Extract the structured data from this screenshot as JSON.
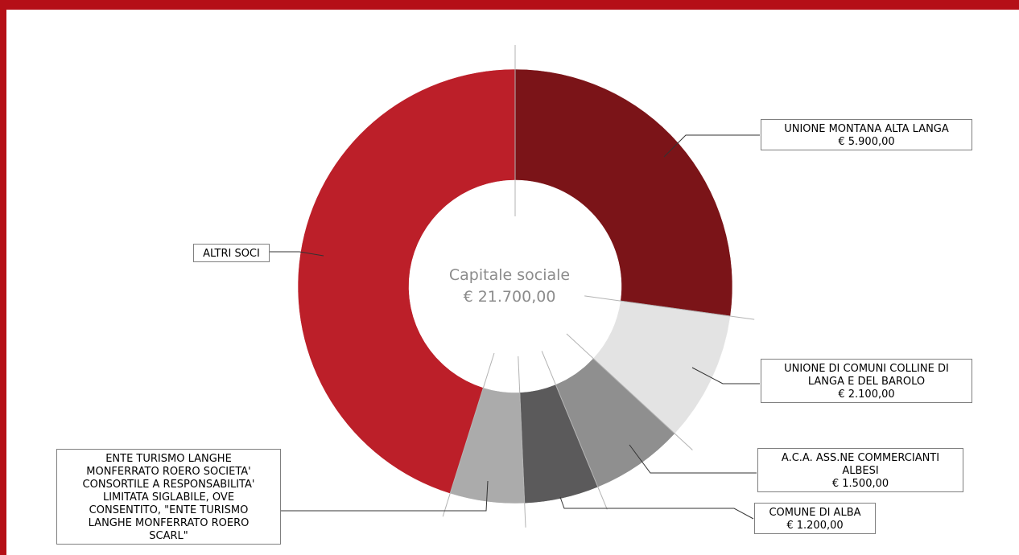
{
  "chart_data": {
    "type": "pie",
    "center_label": [
      "Capitale sociale",
      "€ 21.700,00"
    ],
    "slices": [
      {
        "name": "UNIONE MONTANA ALTA LANGA",
        "value": 5900,
        "value_label": "€ 5.900,00",
        "color": "#7b1418",
        "label_lines": [
          "UNIONE MONTANA ALTA LANGA",
          "€ 5.900,00"
        ]
      },
      {
        "name": "UNIONE DI COMUNI COLLINE DI LANGA E DEL BAROLO",
        "value": 2100,
        "value_label": "€ 2.100,00",
        "color": "#e3e3e3",
        "label_lines": [
          "UNIONE DI COMUNI COLLINE DI",
          "LANGA E DEL BAROLO",
          "€ 2.100,00"
        ]
      },
      {
        "name": "A.C.A. ASS.NE COMMERCIANTI ALBESI",
        "value": 1500,
        "value_label": "€ 1.500,00",
        "color": "#8f8f8f",
        "label_lines": [
          "A.C.A. ASS.NE COMMERCIANTI",
          "ALBESI",
          "€ 1.500,00"
        ]
      },
      {
        "name": "COMUNE DI ALBA",
        "value": 1200,
        "value_label": "€ 1.200,00",
        "color": "#5b5a5b",
        "label_lines": [
          "COMUNE DI ALBA",
          "€ 1.200,00"
        ]
      },
      {
        "name": "ENTE TURISMO LANGHE MONFERRATO ROERO SCARL",
        "value": 1200,
        "value_label": "",
        "color": "#ababab",
        "label_lines": [
          "ENTE TURISMO LANGHE",
          "MONFERRATO ROERO SOCIETA'",
          "CONSORTILE A RESPONSABILITA'",
          "LIMITATA SIGLABILE, OVE",
          "CONSENTITO, \"ENTE TURISMO",
          "LANGHE MONFERRATO ROERO",
          "SCARL\""
        ]
      },
      {
        "name": "ALTRI SOCI",
        "value": 9800,
        "value_label": "",
        "color": "#bc1f29",
        "label_lines": [
          "ALTRI SOCI"
        ]
      }
    ]
  }
}
